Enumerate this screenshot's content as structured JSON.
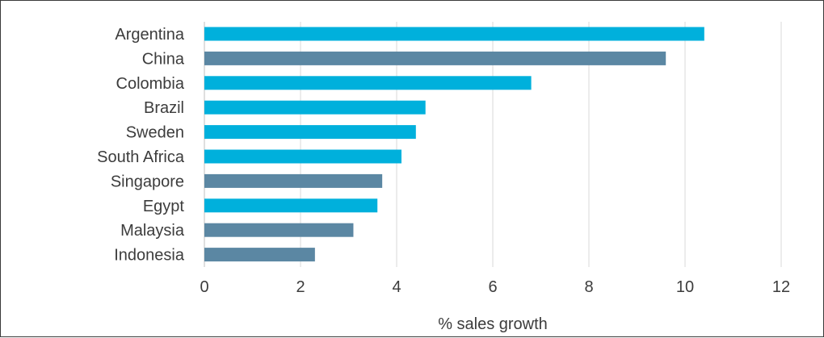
{
  "chart_data": {
    "type": "bar",
    "orientation": "horizontal",
    "categories": [
      "Argentina",
      "China",
      "Colombia",
      "Brazil",
      "Sweden",
      "South Africa",
      "Singapore",
      "Egypt",
      "Malaysia",
      "Indonesia"
    ],
    "values": [
      10.4,
      9.6,
      6.8,
      4.6,
      4.4,
      4.1,
      3.7,
      3.6,
      3.1,
      2.3
    ],
    "bar_colors": [
      "#00b0dc",
      "#5b87a3",
      "#00b0dc",
      "#00b0dc",
      "#00b0dc",
      "#00b0dc",
      "#5b87a3",
      "#00b0dc",
      "#5b87a3",
      "#5b87a3"
    ],
    "xlabel": "% sales growth",
    "ylabel": "",
    "title": "",
    "xlim": [
      0,
      12
    ],
    "x_ticks": [
      "0",
      "2",
      "4",
      "6",
      "8",
      "10",
      "12"
    ],
    "grid": "vertical",
    "legend": "none"
  },
  "colors": {
    "bar_primary": "#00b0dc",
    "bar_secondary": "#5b87a3",
    "grid": "#d9d9d9",
    "axis": "#bfbfbf",
    "text": "#3c3c3c"
  }
}
